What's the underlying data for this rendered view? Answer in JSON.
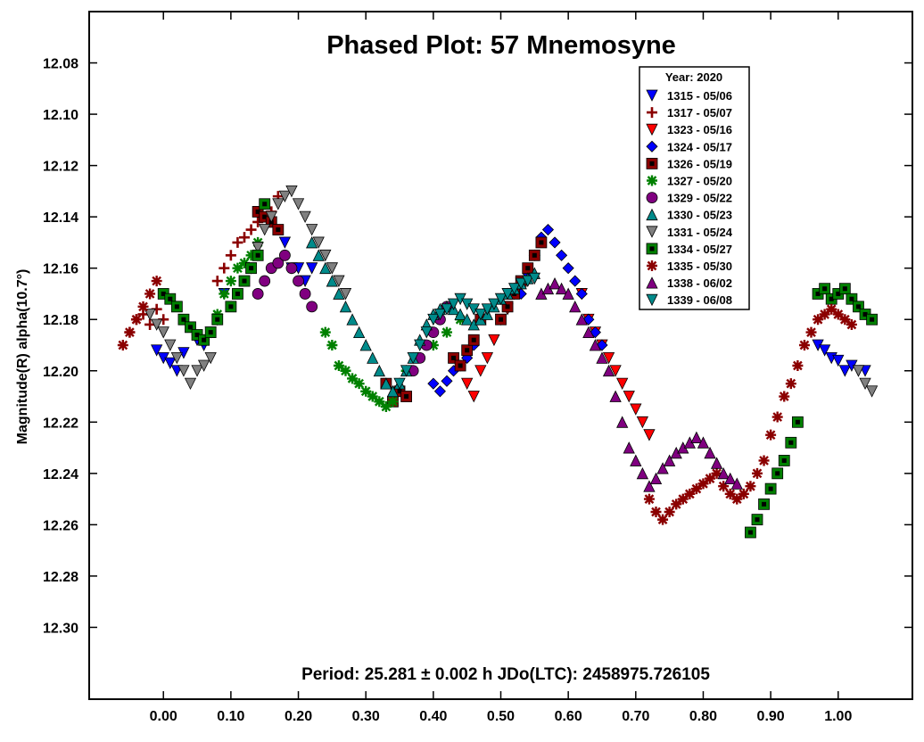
{
  "chart_data": {
    "type": "scatter",
    "title": "Phased Plot: 57 Mnemosyne",
    "ylabel": "Magnitude(R) alpha(10.7°)",
    "xlabel": "",
    "footer": "Period: 25.281 ± 0.002 h  JDo(LTC): 2458975.726105",
    "xlim": [
      -0.11,
      1.11
    ],
    "ylim": [
      12.06,
      12.328
    ],
    "y_inverted": true,
    "x_ticks": [
      "0.00",
      "0.10",
      "0.20",
      "0.30",
      "0.40",
      "0.50",
      "0.60",
      "0.70",
      "0.80",
      "0.90",
      "1.00"
    ],
    "x_tick_values": [
      0,
      0.1,
      0.2,
      0.3,
      0.4,
      0.5,
      0.6,
      0.7,
      0.8,
      0.9,
      1.0
    ],
    "y_ticks": [
      "12.08",
      "12.10",
      "12.12",
      "12.14",
      "12.16",
      "12.18",
      "12.20",
      "12.22",
      "12.24",
      "12.26",
      "12.28",
      "12.30"
    ],
    "y_tick_values": [
      12.08,
      12.1,
      12.12,
      12.14,
      12.16,
      12.18,
      12.2,
      12.22,
      12.24,
      12.26,
      12.28,
      12.3
    ],
    "grid": false,
    "legend_title": "Year: 2020",
    "legend_position": "top-right",
    "series": [
      {
        "name": "1315 - 05/06",
        "marker": "triangle-down",
        "color": "#0000ff",
        "x": [
          -0.01,
          0.0,
          0.01,
          0.02,
          0.03,
          0.05,
          0.06,
          0.07,
          0.08,
          0.09,
          0.18,
          0.19,
          0.2,
          0.21,
          0.22,
          0.97,
          0.98,
          0.99,
          1.0,
          1.01,
          1.02,
          1.03,
          1.04
        ],
        "y": [
          12.192,
          12.195,
          12.197,
          12.2,
          12.193,
          12.188,
          12.19,
          12.185,
          12.18,
          12.17,
          12.15,
          12.16,
          12.16,
          12.165,
          12.16,
          12.19,
          12.192,
          12.195,
          12.196,
          12.2,
          12.198,
          12.2,
          12.2
        ]
      },
      {
        "name": "1317 - 05/07",
        "marker": "plus",
        "color": "#8b0000",
        "x": [
          -0.05,
          -0.04,
          -0.03,
          -0.02,
          -0.01,
          0.0,
          0.08,
          0.09,
          0.1,
          0.11,
          0.12,
          0.13,
          0.14,
          0.15,
          0.16,
          0.17
        ],
        "y": [
          12.185,
          12.18,
          12.178,
          12.182,
          12.176,
          12.18,
          12.165,
          12.16,
          12.155,
          12.15,
          12.148,
          12.145,
          12.142,
          12.14,
          12.138,
          12.132
        ]
      },
      {
        "name": "1323 - 05/16",
        "marker": "triangle-down",
        "color": "#ff0000",
        "x": [
          0.45,
          0.46,
          0.47,
          0.48,
          0.49,
          0.5,
          0.51,
          0.52,
          0.62,
          0.63,
          0.64,
          0.65,
          0.66,
          0.67,
          0.68,
          0.69,
          0.7,
          0.71,
          0.72
        ],
        "y": [
          12.205,
          12.21,
          12.2,
          12.195,
          12.188,
          12.18,
          12.176,
          12.17,
          12.17,
          12.18,
          12.185,
          12.19,
          12.195,
          12.2,
          12.205,
          12.21,
          12.215,
          12.22,
          12.225
        ]
      },
      {
        "name": "1324 - 05/17",
        "marker": "diamond",
        "color": "#0000ff",
        "x": [
          0.4,
          0.41,
          0.42,
          0.43,
          0.44,
          0.45,
          0.46,
          0.53,
          0.54,
          0.55,
          0.56,
          0.57,
          0.58,
          0.59,
          0.6,
          0.61,
          0.62,
          0.63,
          0.64,
          0.65
        ],
        "y": [
          12.205,
          12.208,
          12.204,
          12.2,
          12.198,
          12.195,
          12.19,
          12.17,
          12.162,
          12.155,
          12.148,
          12.145,
          12.15,
          12.155,
          12.16,
          12.165,
          12.17,
          12.18,
          12.185,
          12.19
        ]
      },
      {
        "name": "1326 - 05/19",
        "marker": "square",
        "color": "#8b0000",
        "x": [
          0.14,
          0.15,
          0.16,
          0.17,
          0.33,
          0.34,
          0.35,
          0.36,
          0.43,
          0.44,
          0.45,
          0.46,
          0.47,
          0.5,
          0.51,
          0.52,
          0.53,
          0.54,
          0.55,
          0.56
        ],
        "y": [
          12.138,
          12.14,
          12.142,
          12.145,
          12.205,
          12.212,
          12.208,
          12.21,
          12.195,
          12.198,
          12.192,
          12.188,
          12.18,
          12.18,
          12.175,
          12.17,
          12.165,
          12.16,
          12.155,
          12.15
        ]
      },
      {
        "name": "1327 - 05/20",
        "marker": "asterisk",
        "color": "#008000",
        "x": [
          0.08,
          0.09,
          0.1,
          0.11,
          0.12,
          0.13,
          0.14,
          0.24,
          0.25,
          0.26,
          0.27,
          0.28,
          0.29,
          0.3,
          0.31,
          0.32,
          0.33,
          0.34,
          0.36,
          0.38,
          0.4,
          0.42,
          0.44
        ],
        "y": [
          12.178,
          12.17,
          12.165,
          12.16,
          12.158,
          12.155,
          12.15,
          12.185,
          12.19,
          12.198,
          12.2,
          12.203,
          12.205,
          12.208,
          12.21,
          12.212,
          12.214,
          12.212,
          12.2,
          12.195,
          12.19,
          12.185,
          12.18
        ]
      },
      {
        "name": "1329 - 05/22",
        "marker": "circle",
        "color": "#800080",
        "x": [
          0.14,
          0.15,
          0.16,
          0.17,
          0.18,
          0.19,
          0.2,
          0.21,
          0.22,
          0.37,
          0.38,
          0.39,
          0.4,
          0.41,
          0.42
        ],
        "y": [
          12.17,
          12.165,
          12.16,
          12.158,
          12.155,
          12.16,
          12.165,
          12.17,
          12.175,
          12.2,
          12.195,
          12.19,
          12.185,
          12.18,
          12.175
        ]
      },
      {
        "name": "1330 - 05/23",
        "marker": "triangle-up",
        "color": "#008b8b",
        "x": [
          0.22,
          0.23,
          0.24,
          0.25,
          0.26,
          0.27,
          0.28,
          0.29,
          0.3,
          0.31,
          0.32,
          0.33,
          0.34,
          0.35,
          0.36,
          0.37,
          0.38,
          0.39,
          0.4,
          0.41,
          0.42,
          0.43,
          0.44,
          0.45,
          0.46,
          0.47,
          0.48,
          0.49,
          0.5,
          0.51,
          0.52,
          0.53,
          0.54,
          0.55
        ],
        "y": [
          12.15,
          12.155,
          12.16,
          12.165,
          12.17,
          12.175,
          12.18,
          12.185,
          12.19,
          12.195,
          12.2,
          12.205,
          12.208,
          12.205,
          12.2,
          12.195,
          12.188,
          12.182,
          12.178,
          12.176,
          12.175,
          12.176,
          12.178,
          12.18,
          12.182,
          12.18,
          12.178,
          12.175,
          12.172,
          12.17,
          12.168,
          12.166,
          12.164,
          12.162
        ]
      },
      {
        "name": "1331 - 05/24",
        "marker": "triangle-down",
        "color": "#808080",
        "x": [
          -0.02,
          -0.01,
          0.0,
          0.01,
          0.02,
          0.03,
          0.04,
          0.05,
          0.06,
          0.07,
          0.13,
          0.14,
          0.15,
          0.16,
          0.17,
          0.18,
          0.19,
          0.2,
          0.21,
          0.22,
          0.23,
          0.24,
          0.25,
          0.26,
          0.27,
          1.03,
          1.04,
          1.05
        ],
        "y": [
          12.178,
          12.182,
          12.185,
          12.19,
          12.195,
          12.2,
          12.205,
          12.2,
          12.198,
          12.195,
          12.16,
          12.152,
          12.145,
          12.14,
          12.135,
          12.132,
          12.13,
          12.135,
          12.14,
          12.145,
          12.15,
          12.155,
          12.16,
          12.165,
          12.17,
          12.2,
          12.205,
          12.208
        ]
      },
      {
        "name": "1334 - 05/27",
        "marker": "square",
        "color": "#008000",
        "x": [
          0.0,
          0.01,
          0.02,
          0.03,
          0.04,
          0.05,
          0.06,
          0.07,
          0.08,
          0.1,
          0.11,
          0.12,
          0.13,
          0.14,
          0.15,
          0.87,
          0.88,
          0.89,
          0.9,
          0.91,
          0.92,
          0.93,
          0.94,
          0.97,
          0.98,
          0.99,
          1.0,
          1.01,
          1.02,
          1.03,
          1.04,
          1.05
        ],
        "y": [
          12.17,
          12.172,
          12.175,
          12.18,
          12.183,
          12.186,
          12.188,
          12.185,
          12.18,
          12.175,
          12.17,
          12.165,
          12.16,
          12.155,
          12.135,
          12.263,
          12.258,
          12.252,
          12.246,
          12.24,
          12.235,
          12.228,
          12.22,
          12.17,
          12.168,
          12.172,
          12.17,
          12.168,
          12.172,
          12.175,
          12.178,
          12.18
        ]
      },
      {
        "name": "1335 - 05/30",
        "marker": "asterisk",
        "color": "#8b0000",
        "x": [
          -0.06,
          -0.05,
          -0.04,
          -0.03,
          -0.02,
          -0.01,
          0.72,
          0.73,
          0.74,
          0.75,
          0.76,
          0.77,
          0.78,
          0.79,
          0.8,
          0.81,
          0.82,
          0.83,
          0.84,
          0.85,
          0.86,
          0.87,
          0.88,
          0.89,
          0.9,
          0.91,
          0.92,
          0.93,
          0.94,
          0.95,
          0.96,
          0.97,
          0.98,
          0.99,
          1.0,
          1.01,
          1.02
        ],
        "y": [
          12.19,
          12.185,
          12.18,
          12.175,
          12.17,
          12.165,
          12.25,
          12.255,
          12.258,
          12.255,
          12.252,
          12.25,
          12.248,
          12.246,
          12.244,
          12.242,
          12.24,
          12.245,
          12.248,
          12.25,
          12.248,
          12.245,
          12.24,
          12.235,
          12.225,
          12.218,
          12.21,
          12.205,
          12.198,
          12.19,
          12.185,
          12.18,
          12.178,
          12.176,
          12.178,
          12.18,
          12.182
        ]
      },
      {
        "name": "1338 - 06/02",
        "marker": "triangle-up",
        "color": "#800080",
        "x": [
          0.56,
          0.57,
          0.58,
          0.59,
          0.6,
          0.61,
          0.62,
          0.63,
          0.64,
          0.65,
          0.66,
          0.67,
          0.68,
          0.69,
          0.7,
          0.71,
          0.72,
          0.73,
          0.74,
          0.75,
          0.76,
          0.77,
          0.78,
          0.79,
          0.8,
          0.81,
          0.82,
          0.83,
          0.84,
          0.85
        ],
        "y": [
          12.17,
          12.168,
          12.166,
          12.168,
          12.17,
          12.175,
          12.18,
          12.185,
          12.19,
          12.195,
          12.2,
          12.21,
          12.22,
          12.23,
          12.235,
          12.24,
          12.245,
          12.242,
          12.238,
          12.235,
          12.232,
          12.23,
          12.228,
          12.226,
          12.228,
          12.232,
          12.236,
          12.24,
          12.242,
          12.244
        ]
      },
      {
        "name": "1339 - 06/08",
        "marker": "triangle-down",
        "color": "#008b8b",
        "x": [
          0.35,
          0.36,
          0.37,
          0.38,
          0.39,
          0.4,
          0.41,
          0.42,
          0.43,
          0.44,
          0.45,
          0.46,
          0.47,
          0.48,
          0.49,
          0.5,
          0.51,
          0.52,
          0.53,
          0.54,
          0.55
        ],
        "y": [
          12.205,
          12.2,
          12.195,
          12.19,
          12.185,
          12.18,
          12.178,
          12.176,
          12.174,
          12.172,
          12.174,
          12.176,
          12.178,
          12.176,
          12.174,
          12.172,
          12.17,
          12.168,
          12.166,
          12.165,
          12.164
        ]
      }
    ]
  }
}
